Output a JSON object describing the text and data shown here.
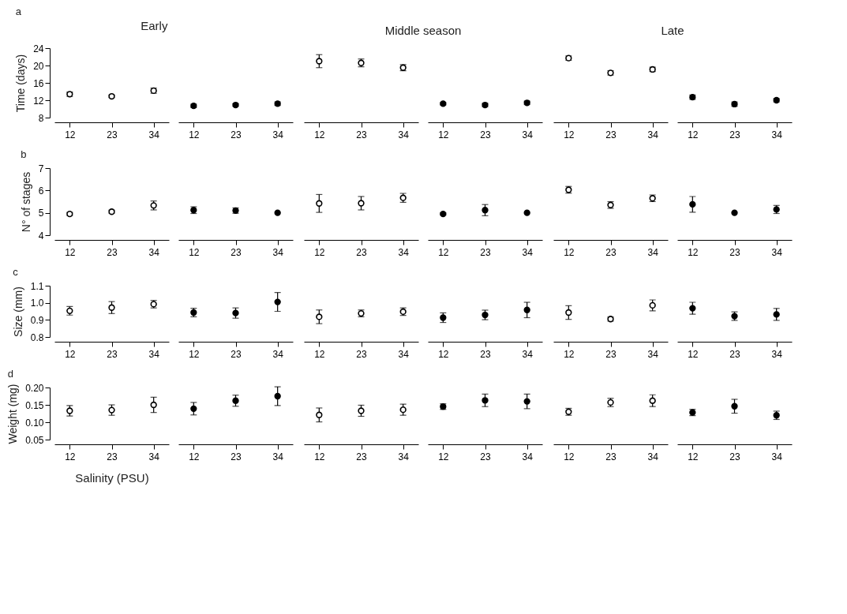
{
  "chart_data": [
    {
      "type": "scatter",
      "title": "Early",
      "ylabel": "Time (days)",
      "annotations": [
        "a"
      ],
      "x": [
        12,
        23,
        34
      ],
      "xlim": [
        8,
        38
      ],
      "xticks": [
        12,
        23,
        34
      ],
      "ylim": [
        8,
        24
      ],
      "yticks": [
        8,
        12,
        16,
        20,
        24
      ],
      "marker": "circle",
      "series": [
        {
          "color": "#ffffff",
          "values": [
            13.4,
            12.9,
            14.2
          ],
          "errors": [
            0.5,
            0.3,
            0.6
          ]
        }
      ]
    },
    {
      "type": "scatter",
      "x": [
        12,
        23,
        34
      ],
      "xlim": [
        8,
        38
      ],
      "xticks": [
        12,
        23,
        34
      ],
      "ylim": [
        8,
        24
      ],
      "tick_labels": "x",
      "marker": "circle",
      "series": [
        {
          "color": "#000000",
          "values": [
            10.7,
            10.9,
            11.2
          ],
          "errors": [
            0.4,
            0.3,
            0.4
          ]
        }
      ]
    },
    {
      "type": "scatter",
      "title": "Middle season",
      "x": [
        12,
        23,
        34
      ],
      "xlim": [
        8,
        38
      ],
      "xticks": [
        12,
        23,
        34
      ],
      "ylim": [
        8,
        24
      ],
      "tick_labels": "x",
      "marker": "circle",
      "series": [
        {
          "color": "#ffffff",
          "values": [
            21.0,
            20.6,
            19.5
          ],
          "errors": [
            1.5,
            0.9,
            0.7
          ]
        }
      ]
    },
    {
      "type": "scatter",
      "x": [
        12,
        23,
        34
      ],
      "xlim": [
        8,
        38
      ],
      "xticks": [
        12,
        23,
        34
      ],
      "ylim": [
        8,
        24
      ],
      "tick_labels": "x",
      "marker": "circle",
      "series": [
        {
          "color": "#000000",
          "values": [
            11.2,
            10.9,
            11.4
          ],
          "errors": [
            0.3,
            0.4,
            0.4
          ]
        }
      ]
    },
    {
      "type": "scatter",
      "title": "Late",
      "x": [
        12,
        23,
        34
      ],
      "xlim": [
        8,
        38
      ],
      "xticks": [
        12,
        23,
        34
      ],
      "ylim": [
        8,
        24
      ],
      "tick_labels": "x",
      "marker": "circle",
      "series": [
        {
          "color": "#ffffff",
          "values": [
            21.7,
            18.3,
            19.1
          ],
          "errors": [
            0.5,
            0.5,
            0.5
          ]
        }
      ]
    },
    {
      "type": "scatter",
      "x": [
        12,
        23,
        34
      ],
      "xlim": [
        8,
        38
      ],
      "xticks": [
        12,
        23,
        34
      ],
      "ylim": [
        8,
        24
      ],
      "tick_labels": "x",
      "marker": "circle",
      "series": [
        {
          "color": "#000000",
          "values": [
            12.7,
            11.1,
            12.0
          ],
          "errors": [
            0.5,
            0.5,
            0.4
          ]
        }
      ]
    },
    {
      "type": "scatter",
      "ylabel": "N° of stages",
      "annotations": [
        "b"
      ],
      "x": [
        12,
        23,
        34
      ],
      "xlim": [
        8,
        38
      ],
      "xticks": [
        12,
        23,
        34
      ],
      "ylim": [
        4,
        7
      ],
      "yticks": [
        4,
        5,
        6,
        7
      ],
      "marker": "circle",
      "series": [
        {
          "color": "#ffffff",
          "values": [
            4.95,
            5.05,
            5.33
          ],
          "errors": [
            0.07,
            0.07,
            0.2
          ]
        }
      ]
    },
    {
      "type": "scatter",
      "x": [
        12,
        23,
        34
      ],
      "xlim": [
        8,
        38
      ],
      "xticks": [
        12,
        23,
        34
      ],
      "ylim": [
        4,
        7
      ],
      "tick_labels": "x",
      "marker": "circle",
      "series": [
        {
          "color": "#000000",
          "values": [
            5.12,
            5.1,
            5.0
          ],
          "errors": [
            0.15,
            0.12,
            null
          ]
        }
      ]
    },
    {
      "type": "scatter",
      "x": [
        12,
        23,
        34
      ],
      "xlim": [
        8,
        38
      ],
      "xticks": [
        12,
        23,
        34
      ],
      "ylim": [
        4,
        7
      ],
      "tick_labels": "x",
      "marker": "circle",
      "series": [
        {
          "color": "#ffffff",
          "values": [
            5.42,
            5.43,
            5.67
          ],
          "errors": [
            0.4,
            0.3,
            0.2
          ]
        }
      ]
    },
    {
      "type": "scatter",
      "x": [
        12,
        23,
        34
      ],
      "xlim": [
        8,
        38
      ],
      "xticks": [
        12,
        23,
        34
      ],
      "ylim": [
        4,
        7
      ],
      "tick_labels": "x",
      "marker": "circle",
      "series": [
        {
          "color": "#000000",
          "values": [
            4.95,
            5.12,
            5.0
          ],
          "errors": [
            0.05,
            0.25,
            null
          ]
        }
      ]
    },
    {
      "type": "scatter",
      "x": [
        12,
        23,
        34
      ],
      "xlim": [
        8,
        38
      ],
      "xticks": [
        12,
        23,
        34
      ],
      "ylim": [
        4,
        7
      ],
      "tick_labels": "x",
      "marker": "circle",
      "series": [
        {
          "color": "#ffffff",
          "values": [
            6.03,
            5.35,
            5.65
          ],
          "errors": [
            0.15,
            0.15,
            0.15
          ]
        }
      ]
    },
    {
      "type": "scatter",
      "x": [
        12,
        23,
        34
      ],
      "xlim": [
        8,
        38
      ],
      "xticks": [
        12,
        23,
        34
      ],
      "ylim": [
        4,
        7
      ],
      "tick_labels": "x",
      "marker": "circle",
      "series": [
        {
          "color": "#000000",
          "values": [
            5.38,
            5.0,
            5.15
          ],
          "errors": [
            0.35,
            null,
            0.18
          ]
        }
      ]
    },
    {
      "type": "scatter",
      "ylabel": "Size (mm)",
      "annotations": [
        "c"
      ],
      "x": [
        12,
        23,
        34
      ],
      "xlim": [
        8,
        38
      ],
      "xticks": [
        12,
        23,
        34
      ],
      "ylim": [
        0.8,
        1.1
      ],
      "yticks": [
        0.8,
        0.9,
        {
          "value": 1,
          "label": "1.0"
        },
        1.1
      ],
      "marker": "circle",
      "series": [
        {
          "color": "#ffffff",
          "values": [
            0.953,
            0.972,
            0.992
          ],
          "errors": [
            0.025,
            0.035,
            0.022
          ]
        }
      ]
    },
    {
      "type": "scatter",
      "x": [
        12,
        23,
        34
      ],
      "xlim": [
        8,
        38
      ],
      "xticks": [
        12,
        23,
        34
      ],
      "ylim": [
        0.8,
        1.1
      ],
      "tick_labels": "x",
      "marker": "circle",
      "series": [
        {
          "color": "#000000",
          "values": [
            0.943,
            0.94,
            1.005
          ],
          "errors": [
            0.025,
            0.03,
            0.055
          ]
        }
      ]
    },
    {
      "type": "scatter",
      "x": [
        12,
        23,
        34
      ],
      "xlim": [
        8,
        38
      ],
      "xticks": [
        12,
        23,
        34
      ],
      "ylim": [
        0.8,
        1.1
      ],
      "tick_labels": "x",
      "marker": "circle",
      "series": [
        {
          "color": "#ffffff",
          "values": [
            0.918,
            0.938,
            0.948
          ],
          "errors": [
            0.04,
            0.02,
            0.022
          ]
        }
      ]
    },
    {
      "type": "scatter",
      "x": [
        12,
        23,
        34
      ],
      "xlim": [
        8,
        38
      ],
      "xticks": [
        12,
        23,
        34
      ],
      "ylim": [
        0.8,
        1.1
      ],
      "tick_labels": "x",
      "marker": "circle",
      "series": [
        {
          "color": "#000000",
          "values": [
            0.913,
            0.929,
            0.958
          ],
          "errors": [
            0.028,
            0.028,
            0.045
          ]
        }
      ]
    },
    {
      "type": "scatter",
      "x": [
        12,
        23,
        34
      ],
      "xlim": [
        8,
        38
      ],
      "xticks": [
        12,
        23,
        34
      ],
      "ylim": [
        0.8,
        1.1
      ],
      "tick_labels": "x",
      "marker": "circle",
      "series": [
        {
          "color": "#ffffff",
          "values": [
            0.943,
            0.905,
            0.985
          ],
          "errors": [
            0.04,
            0.012,
            0.032
          ]
        }
      ]
    },
    {
      "type": "scatter",
      "x": [
        12,
        23,
        34
      ],
      "xlim": [
        8,
        38
      ],
      "xticks": [
        12,
        23,
        34
      ],
      "ylim": [
        0.8,
        1.1
      ],
      "tick_labels": "x",
      "marker": "circle",
      "series": [
        {
          "color": "#000000",
          "values": [
            0.968,
            0.922,
            0.932
          ],
          "errors": [
            0.035,
            0.025,
            0.035
          ]
        }
      ]
    },
    {
      "type": "scatter",
      "ylabel": "Weight (mg)",
      "xlabel": "Salinity (PSU)",
      "annotations": [
        "d"
      ],
      "x": [
        12,
        23,
        34
      ],
      "xlim": [
        8,
        38
      ],
      "xticks": [
        12,
        23,
        34
      ],
      "ylim": [
        0.05,
        0.2
      ],
      "yticks": [
        0.05,
        {
          "value": 0.1,
          "label": "0.10"
        },
        0.15,
        {
          "value": 0.2,
          "label": "0.20"
        }
      ],
      "marker": "circle",
      "series": [
        {
          "color": "#ffffff",
          "values": [
            0.133,
            0.135,
            0.15
          ],
          "errors": [
            0.015,
            0.015,
            0.022
          ]
        }
      ]
    },
    {
      "type": "scatter",
      "x": [
        12,
        23,
        34
      ],
      "xlim": [
        8,
        38
      ],
      "xticks": [
        12,
        23,
        34
      ],
      "ylim": [
        0.05,
        0.2
      ],
      "tick_labels": "x",
      "marker": "circle",
      "series": [
        {
          "color": "#000000",
          "values": [
            0.139,
            0.162,
            0.175
          ],
          "errors": [
            0.018,
            0.016,
            0.027
          ]
        }
      ]
    },
    {
      "type": "scatter",
      "x": [
        12,
        23,
        34
      ],
      "xlim": [
        8,
        38
      ],
      "xticks": [
        12,
        23,
        34
      ],
      "ylim": [
        0.05,
        0.2
      ],
      "tick_labels": "x",
      "marker": "circle",
      "series": [
        {
          "color": "#ffffff",
          "values": [
            0.121,
            0.133,
            0.136
          ],
          "errors": [
            0.02,
            0.016,
            0.016
          ]
        }
      ]
    },
    {
      "type": "scatter",
      "x": [
        12,
        23,
        34
      ],
      "xlim": [
        8,
        38
      ],
      "xticks": [
        12,
        23,
        34
      ],
      "ylim": [
        0.05,
        0.2
      ],
      "tick_labels": "x",
      "marker": "circle",
      "series": [
        {
          "color": "#000000",
          "values": [
            0.145,
            0.163,
            0.16
          ],
          "errors": [
            0.008,
            0.018,
            0.021
          ]
        }
      ]
    },
    {
      "type": "scatter",
      "x": [
        12,
        23,
        34
      ],
      "xlim": [
        8,
        38
      ],
      "xticks": [
        12,
        23,
        34
      ],
      "ylim": [
        0.05,
        0.2
      ],
      "tick_labels": "x",
      "marker": "circle",
      "series": [
        {
          "color": "#ffffff",
          "values": [
            0.13,
            0.157,
            0.162
          ],
          "errors": [
            0.01,
            0.012,
            0.017
          ]
        }
      ]
    },
    {
      "type": "scatter",
      "x": [
        12,
        23,
        34
      ],
      "xlim": [
        8,
        38
      ],
      "xticks": [
        12,
        23,
        34
      ],
      "ylim": [
        0.05,
        0.2
      ],
      "tick_labels": "x",
      "marker": "circle",
      "series": [
        {
          "color": "#000000",
          "values": [
            0.128,
            0.146,
            0.12
          ],
          "errors": [
            0.009,
            0.02,
            0.012
          ]
        }
      ]
    }
  ]
}
